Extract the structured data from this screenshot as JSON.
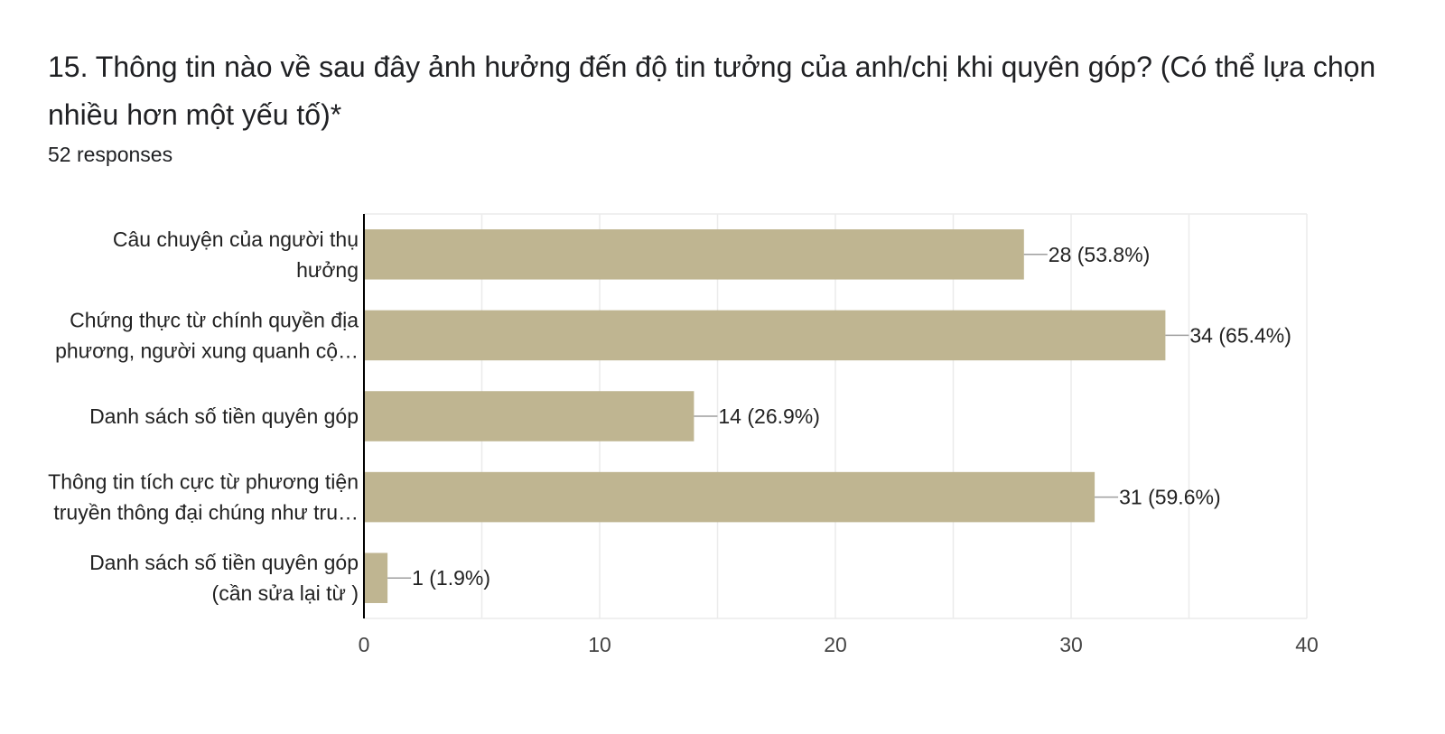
{
  "question": {
    "title": "15. Thông tin nào về sau đây ảnh hưởng đến độ tin tưởng của anh/chị khi quyên góp? (Có thể lựa chọn nhiều hơn một yếu tố)*",
    "responses": "52 responses"
  },
  "colors": {
    "bar": "#bfb591",
    "grid": "#ebebeb",
    "axis": "#000000",
    "leader": "#9e9e9e"
  },
  "chart_data": {
    "type": "bar",
    "orientation": "horizontal",
    "categories": [
      [
        "Câu chuyện của người thụ",
        "hưởng"
      ],
      [
        "Chứng thực từ chính quyền địa",
        "phương, người xung quanh cộ…"
      ],
      [
        "Danh sách số tiền quyên góp"
      ],
      [
        "Thông tin tích cực từ phương tiện",
        "truyền thông đại chúng như tru…"
      ],
      [
        "Danh sách số tiền quyên góp",
        "(cần sửa lại từ )"
      ]
    ],
    "values": [
      28,
      34,
      14,
      31,
      1
    ],
    "value_labels": [
      "28 (53.8%)",
      "34 (65.4%)",
      "14 (26.9%)",
      "31 (59.6%)",
      "1 (1.9%)"
    ],
    "xlim": [
      0,
      40
    ],
    "xticks": [
      0,
      10,
      20,
      30,
      40
    ],
    "grid": true
  }
}
